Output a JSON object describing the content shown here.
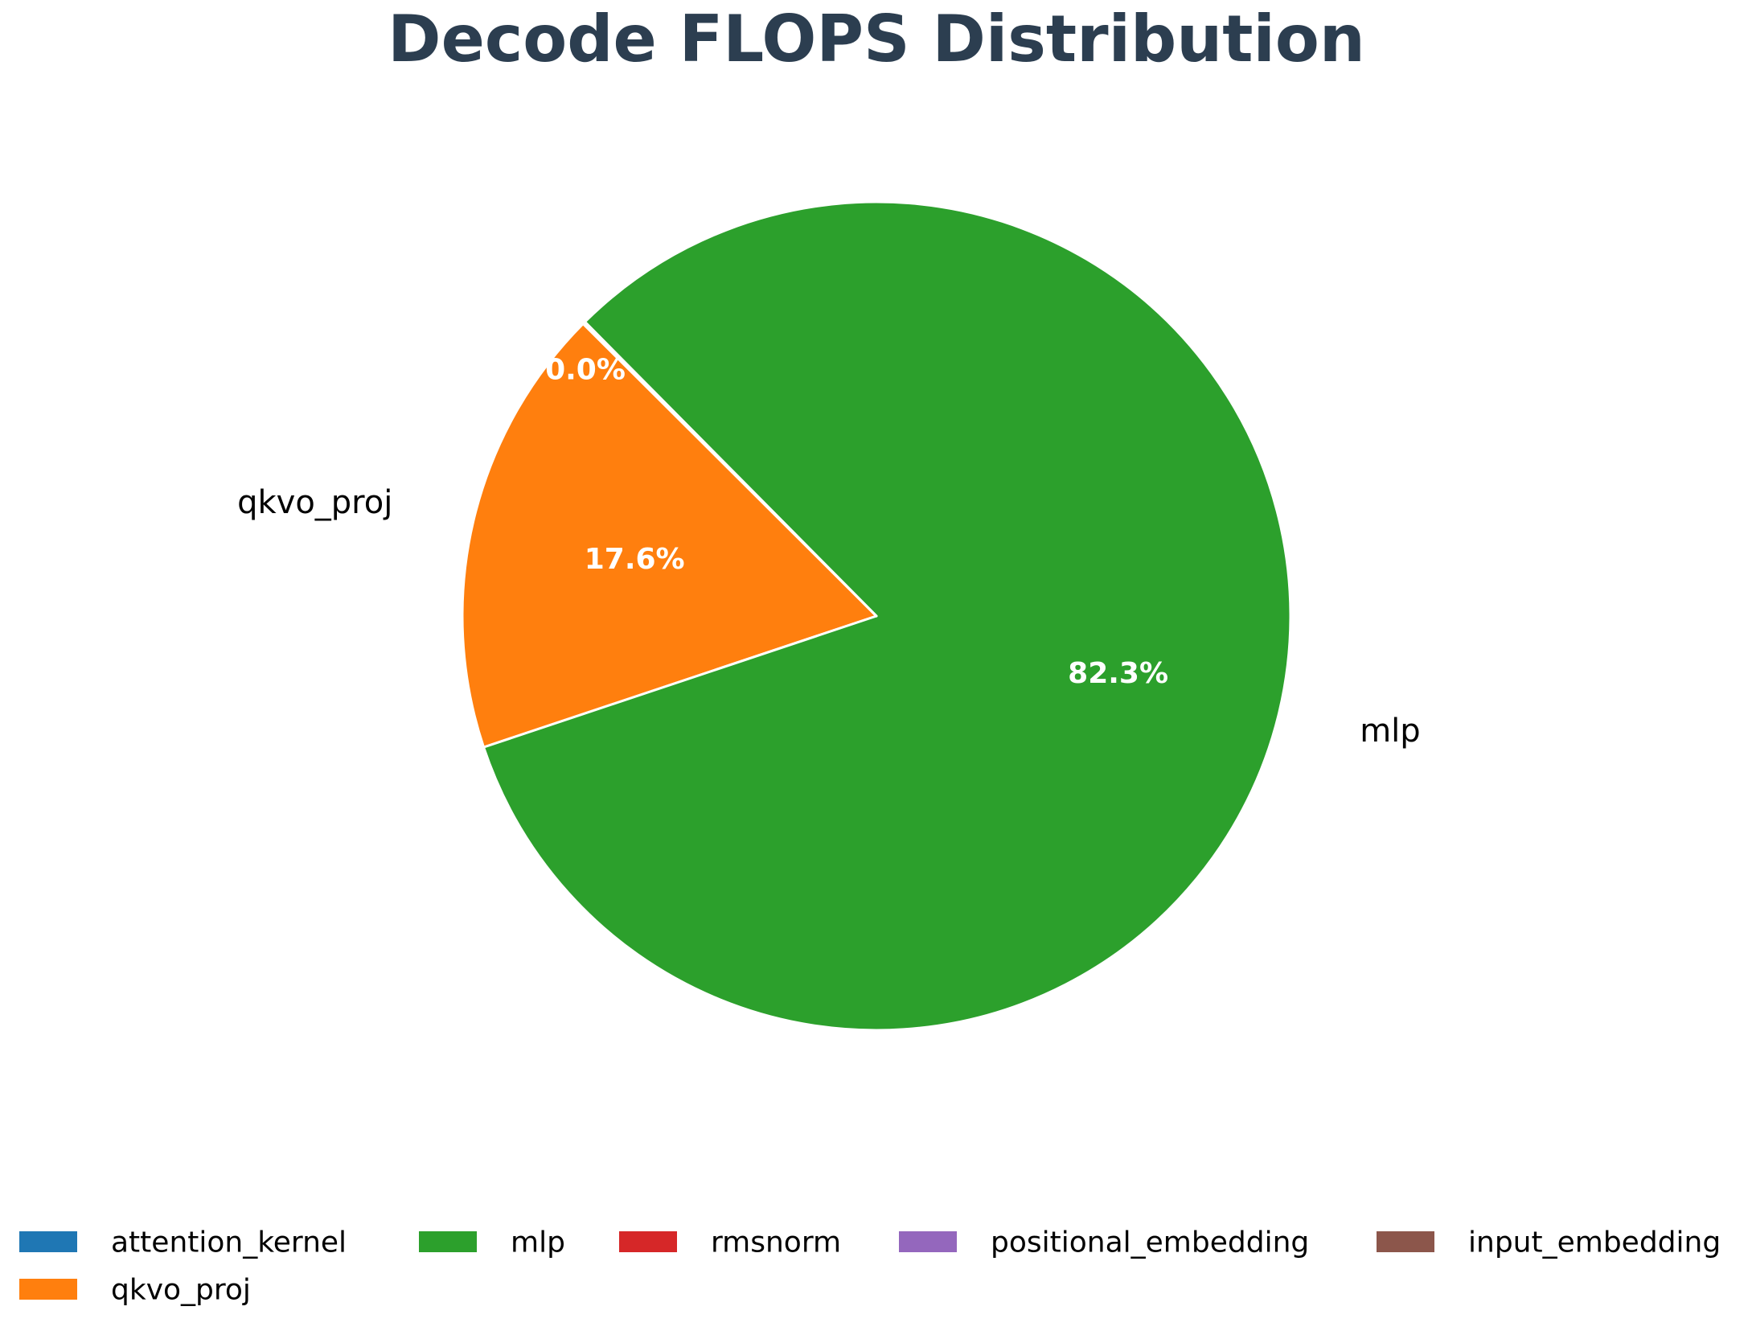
{
  "chart_data": {
    "type": "pie",
    "title": "Decode FLOPS Distribution",
    "title_color": "#2c3e50",
    "slices": [
      {
        "label": "attention_kernel",
        "value": 0.03,
        "color": "#1f77b4",
        "pct_text": "",
        "show_label": false
      },
      {
        "label": "qkvo_proj",
        "value": 17.6,
        "color": "#ff7f0e",
        "pct_text": "17.6%",
        "show_label": true
      },
      {
        "label": "mlp",
        "value": 82.3,
        "color": "#2ca02c",
        "pct_text": "82.3%",
        "show_label": true
      },
      {
        "label": "rmsnorm",
        "value": 0.03,
        "color": "#d62728",
        "pct_text": "",
        "show_label": false
      },
      {
        "label": "positional_embedding",
        "value": 0.02,
        "color": "#9467bd",
        "pct_text": "",
        "show_label": false
      },
      {
        "label": "input_embedding",
        "value": 0.02,
        "color": "#8c564b",
        "pct_text": "",
        "show_label": false
      }
    ],
    "overlap_label": "0.0%",
    "legend": {
      "placement": "bottom",
      "entries": [
        {
          "label": "attention_kernel",
          "color": "#1f77b4"
        },
        {
          "label": "mlp",
          "color": "#2ca02c"
        },
        {
          "label": "rmsnorm",
          "color": "#d62728"
        },
        {
          "label": "positional_embedding",
          "color": "#9467bd"
        },
        {
          "label": "input_embedding",
          "color": "#8c564b"
        },
        {
          "label": "qkvo_proj",
          "color": "#ff7f0e"
        }
      ]
    }
  }
}
